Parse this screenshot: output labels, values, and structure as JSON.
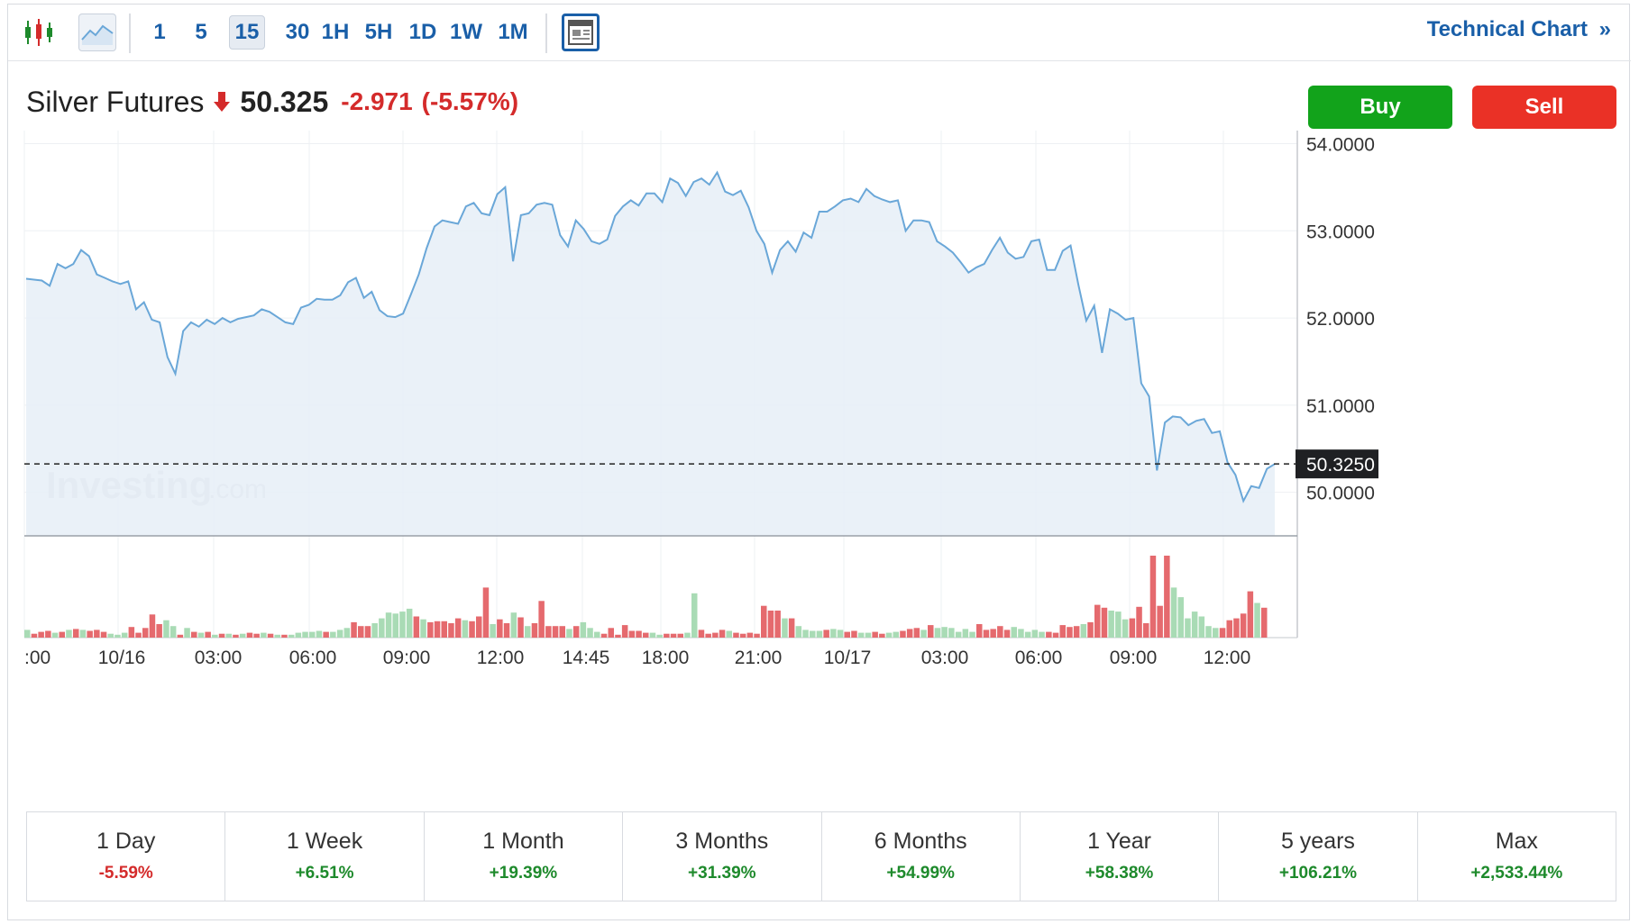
{
  "toolbar": {
    "intervals": [
      {
        "label": "1",
        "active": false
      },
      {
        "label": "5",
        "active": false
      },
      {
        "label": "15",
        "active": true
      },
      {
        "label": "30",
        "active": false
      },
      {
        "label": "1H",
        "active": false
      },
      {
        "label": "5H",
        "active": false
      },
      {
        "label": "1D",
        "active": false
      },
      {
        "label": "1W",
        "active": false
      },
      {
        "label": "1M",
        "active": false
      }
    ],
    "technical_chart_label": "Technical Chart",
    "technical_chart_arrow": "»",
    "icons": [
      "candlestick-icon",
      "line-chart-icon",
      "widget-layout-icon"
    ]
  },
  "instrument": {
    "name": "Silver Futures",
    "price": "50.325",
    "change": "-2.971",
    "change_pct": "(-5.57%)",
    "direction_icon": "arrow-down-icon"
  },
  "actions": {
    "buy_label": "Buy",
    "sell_label": "Sell"
  },
  "colors": {
    "accent": "#1a5fa8",
    "line": "#6aa7d8",
    "area_fill": "#e6eef7",
    "up_volume": "#a9dbb5",
    "down_volume": "#e56a6e",
    "buy": "#12a31b",
    "sell": "#ea3126",
    "negative": "#d42b2b",
    "positive": "#1e8a2c"
  },
  "watermark": {
    "brand": "Investing",
    "suffix": ".com"
  },
  "chart_data": {
    "type": "area",
    "title": "Silver Futures",
    "ylim": [
      49.5,
      54.15
    ],
    "y_ticks": [
      "54.0000",
      "53.0000",
      "52.0000",
      "51.0000",
      "50.0000"
    ],
    "y_tick_values": [
      54,
      53,
      52,
      51,
      50
    ],
    "x_tick_labels": [
      ":00",
      "10/16",
      "03:00",
      "06:00",
      "09:00",
      "12:00",
      "14:45",
      "18:00",
      "21:00",
      "10/17",
      "03:00",
      "06:00",
      "09:00",
      "12:00"
    ],
    "current_price_label": "50.3250",
    "current_price": 50.325,
    "grid": true,
    "series": [
      {
        "values": [
          52.45,
          52.44,
          52.43,
          52.37,
          52.62,
          52.57,
          52.62,
          52.78,
          52.71,
          52.5,
          52.46,
          52.42,
          52.39,
          52.42,
          52.1,
          52.18,
          51.98,
          51.95,
          51.55,
          51.36,
          51.85,
          51.95,
          51.9,
          51.98,
          51.93,
          52.0,
          51.95,
          51.99,
          52.01,
          52.03,
          52.1,
          52.07,
          52.01,
          51.95,
          51.93,
          52.12,
          52.15,
          52.22,
          52.21,
          52.21,
          52.26,
          52.41,
          52.46,
          52.23,
          52.3,
          52.09,
          52.02,
          52.01,
          52.05,
          52.27,
          52.5,
          52.8,
          53.05,
          53.12,
          53.1,
          53.08,
          53.28,
          53.32,
          53.2,
          53.18,
          53.42,
          53.5,
          52.65,
          53.18,
          53.2,
          53.3,
          53.32,
          53.3,
          52.95,
          52.82,
          53.12,
          53.02,
          52.88,
          52.85,
          52.9,
          53.17,
          53.28,
          53.35,
          53.29,
          53.43,
          53.43,
          53.33,
          53.6,
          53.55,
          53.4,
          53.56,
          53.6,
          53.53,
          53.67,
          53.45,
          53.41,
          53.46,
          53.27,
          53.0,
          52.85,
          52.52,
          52.78,
          52.88,
          52.76,
          52.98,
          52.92,
          53.22,
          53.22,
          53.28,
          53.35,
          53.37,
          53.33,
          53.48,
          53.4,
          53.36,
          53.33,
          53.35,
          53.0,
          53.12,
          53.12,
          53.1,
          52.88,
          52.82,
          52.75,
          52.64,
          52.52,
          52.58,
          52.62,
          52.78,
          52.92,
          52.75,
          52.68,
          52.7,
          52.88,
          52.9,
          52.55,
          52.55,
          52.77,
          52.83,
          52.38,
          51.97,
          52.14,
          51.6,
          52.1,
          52.05,
          51.98,
          52.0,
          51.25,
          51.1,
          50.25,
          50.8,
          50.87,
          50.86,
          50.77,
          50.82,
          50.84,
          50.68,
          50.7,
          50.34,
          50.2,
          49.9,
          50.07,
          50.05,
          50.27,
          50.325
        ]
      }
    ],
    "volume": [
      {
        "v": 0.08,
        "up": true
      },
      {
        "v": 0.04,
        "up": false
      },
      {
        "v": 0.06,
        "up": false
      },
      {
        "v": 0.07,
        "up": false
      },
      {
        "v": 0.05,
        "up": true
      },
      {
        "v": 0.06,
        "up": false
      },
      {
        "v": 0.08,
        "up": true
      },
      {
        "v": 0.09,
        "up": false
      },
      {
        "v": 0.08,
        "up": true
      },
      {
        "v": 0.07,
        "up": false
      },
      {
        "v": 0.08,
        "up": false
      },
      {
        "v": 0.06,
        "up": false
      },
      {
        "v": 0.04,
        "up": true
      },
      {
        "v": 0.03,
        "up": true
      },
      {
        "v": 0.05,
        "up": true
      },
      {
        "v": 0.11,
        "up": false
      },
      {
        "v": 0.05,
        "up": false
      },
      {
        "v": 0.1,
        "up": false
      },
      {
        "v": 0.24,
        "up": false
      },
      {
        "v": 0.14,
        "up": false
      },
      {
        "v": 0.18,
        "up": true
      },
      {
        "v": 0.12,
        "up": true
      },
      {
        "v": 0.03,
        "up": false
      },
      {
        "v": 0.1,
        "up": true
      },
      {
        "v": 0.06,
        "up": false
      },
      {
        "v": 0.05,
        "up": true
      },
      {
        "v": 0.06,
        "up": false
      },
      {
        "v": 0.03,
        "up": true
      },
      {
        "v": 0.04,
        "up": false
      },
      {
        "v": 0.04,
        "up": true
      },
      {
        "v": 0.03,
        "up": false
      },
      {
        "v": 0.04,
        "up": true
      },
      {
        "v": 0.05,
        "up": false
      },
      {
        "v": 0.04,
        "up": false
      },
      {
        "v": 0.05,
        "up": true
      },
      {
        "v": 0.04,
        "up": false
      },
      {
        "v": 0.03,
        "up": true
      },
      {
        "v": 0.03,
        "up": false
      },
      {
        "v": 0.03,
        "up": true
      },
      {
        "v": 0.05,
        "up": true
      },
      {
        "v": 0.06,
        "up": true
      },
      {
        "v": 0.06,
        "up": true
      },
      {
        "v": 0.07,
        "up": true
      },
      {
        "v": 0.06,
        "up": false
      },
      {
        "v": 0.06,
        "up": true
      },
      {
        "v": 0.08,
        "up": true
      },
      {
        "v": 0.1,
        "up": true
      },
      {
        "v": 0.16,
        "up": false
      },
      {
        "v": 0.12,
        "up": false
      },
      {
        "v": 0.12,
        "up": false
      },
      {
        "v": 0.15,
        "up": true
      },
      {
        "v": 0.2,
        "up": true
      },
      {
        "v": 0.26,
        "up": true
      },
      {
        "v": 0.25,
        "up": true
      },
      {
        "v": 0.27,
        "up": true
      },
      {
        "v": 0.3,
        "up": true
      },
      {
        "v": 0.22,
        "up": false
      },
      {
        "v": 0.19,
        "up": true
      },
      {
        "v": 0.16,
        "up": false
      },
      {
        "v": 0.17,
        "up": false
      },
      {
        "v": 0.17,
        "up": false
      },
      {
        "v": 0.15,
        "up": false
      },
      {
        "v": 0.2,
        "up": false
      },
      {
        "v": 0.18,
        "up": true
      },
      {
        "v": 0.17,
        "up": false
      },
      {
        "v": 0.22,
        "up": false
      },
      {
        "v": 0.52,
        "up": false
      },
      {
        "v": 0.14,
        "up": true
      },
      {
        "v": 0.19,
        "up": false
      },
      {
        "v": 0.15,
        "up": false
      },
      {
        "v": 0.26,
        "up": true
      },
      {
        "v": 0.21,
        "up": false
      },
      {
        "v": 0.12,
        "up": true
      },
      {
        "v": 0.15,
        "up": false
      },
      {
        "v": 0.38,
        "up": false
      },
      {
        "v": 0.12,
        "up": false
      },
      {
        "v": 0.12,
        "up": false
      },
      {
        "v": 0.12,
        "up": false
      },
      {
        "v": 0.09,
        "up": true
      },
      {
        "v": 0.12,
        "up": false
      },
      {
        "v": 0.16,
        "up": true
      },
      {
        "v": 0.1,
        "up": true
      },
      {
        "v": 0.06,
        "up": true
      },
      {
        "v": 0.04,
        "up": false
      },
      {
        "v": 0.1,
        "up": false
      },
      {
        "v": 0.03,
        "up": false
      },
      {
        "v": 0.13,
        "up": false
      },
      {
        "v": 0.07,
        "up": false
      },
      {
        "v": 0.07,
        "up": false
      },
      {
        "v": 0.05,
        "up": false
      },
      {
        "v": 0.05,
        "up": true
      },
      {
        "v": 0.03,
        "up": true
      },
      {
        "v": 0.04,
        "up": false
      },
      {
        "v": 0.04,
        "up": false
      },
      {
        "v": 0.04,
        "up": false
      },
      {
        "v": 0.05,
        "up": true
      },
      {
        "v": 0.46,
        "up": true
      },
      {
        "v": 0.08,
        "up": false
      },
      {
        "v": 0.04,
        "up": false
      },
      {
        "v": 0.05,
        "up": false
      },
      {
        "v": 0.08,
        "up": false
      },
      {
        "v": 0.07,
        "up": true
      },
      {
        "v": 0.05,
        "up": false
      },
      {
        "v": 0.04,
        "up": false
      },
      {
        "v": 0.05,
        "up": false
      },
      {
        "v": 0.04,
        "up": false
      },
      {
        "v": 0.33,
        "up": false
      },
      {
        "v": 0.28,
        "up": false
      },
      {
        "v": 0.28,
        "up": false
      },
      {
        "v": 0.2,
        "up": true
      },
      {
        "v": 0.2,
        "up": false
      },
      {
        "v": 0.12,
        "up": true
      },
      {
        "v": 0.08,
        "up": true
      },
      {
        "v": 0.07,
        "up": true
      },
      {
        "v": 0.07,
        "up": true
      },
      {
        "v": 0.08,
        "up": false
      },
      {
        "v": 0.09,
        "up": true
      },
      {
        "v": 0.08,
        "up": true
      },
      {
        "v": 0.06,
        "up": false
      },
      {
        "v": 0.07,
        "up": false
      },
      {
        "v": 0.05,
        "up": true
      },
      {
        "v": 0.05,
        "up": true
      },
      {
        "v": 0.06,
        "up": false
      },
      {
        "v": 0.04,
        "up": false
      },
      {
        "v": 0.05,
        "up": true
      },
      {
        "v": 0.06,
        "up": true
      },
      {
        "v": 0.07,
        "up": false
      },
      {
        "v": 0.09,
        "up": false
      },
      {
        "v": 0.1,
        "up": false
      },
      {
        "v": 0.08,
        "up": true
      },
      {
        "v": 0.13,
        "up": false
      },
      {
        "v": 0.1,
        "up": true
      },
      {
        "v": 0.11,
        "up": true
      },
      {
        "v": 0.1,
        "up": true
      },
      {
        "v": 0.06,
        "up": true
      },
      {
        "v": 0.09,
        "up": true
      },
      {
        "v": 0.06,
        "up": true
      },
      {
        "v": 0.14,
        "up": false
      },
      {
        "v": 0.08,
        "up": false
      },
      {
        "v": 0.09,
        "up": false
      },
      {
        "v": 0.12,
        "up": false
      },
      {
        "v": 0.08,
        "up": false
      },
      {
        "v": 0.11,
        "up": true
      },
      {
        "v": 0.09,
        "up": true
      },
      {
        "v": 0.06,
        "up": true
      },
      {
        "v": 0.08,
        "up": true
      },
      {
        "v": 0.06,
        "up": true
      },
      {
        "v": 0.06,
        "up": false
      },
      {
        "v": 0.05,
        "up": false
      },
      {
        "v": 0.13,
        "up": false
      },
      {
        "v": 0.11,
        "up": false
      },
      {
        "v": 0.12,
        "up": false
      },
      {
        "v": 0.14,
        "up": true
      },
      {
        "v": 0.16,
        "up": false
      },
      {
        "v": 0.34,
        "up": false
      },
      {
        "v": 0.31,
        "up": false
      },
      {
        "v": 0.28,
        "up": true
      },
      {
        "v": 0.27,
        "up": true
      },
      {
        "v": 0.19,
        "up": true
      },
      {
        "v": 0.2,
        "up": false
      },
      {
        "v": 0.32,
        "up": false
      },
      {
        "v": 0.15,
        "up": false
      },
      {
        "v": 0.85,
        "up": false
      },
      {
        "v": 0.33,
        "up": false
      },
      {
        "v": 0.85,
        "up": false
      },
      {
        "v": 0.52,
        "up": true
      },
      {
        "v": 0.42,
        "up": true
      },
      {
        "v": 0.2,
        "up": true
      },
      {
        "v": 0.27,
        "up": true
      },
      {
        "v": 0.22,
        "up": true
      },
      {
        "v": 0.12,
        "up": true
      },
      {
        "v": 0.1,
        "up": true
      },
      {
        "v": 0.1,
        "up": false
      },
      {
        "v": 0.18,
        "up": false
      },
      {
        "v": 0.2,
        "up": false
      },
      {
        "v": 0.25,
        "up": false
      },
      {
        "v": 0.48,
        "up": false
      },
      {
        "v": 0.36,
        "up": true
      },
      {
        "v": 0.31,
        "up": false
      }
    ]
  },
  "performance": [
    {
      "label": "1 Day",
      "value": "-5.59%",
      "positive": false
    },
    {
      "label": "1 Week",
      "value": "+6.51%",
      "positive": true
    },
    {
      "label": "1 Month",
      "value": "+19.39%",
      "positive": true
    },
    {
      "label": "3 Months",
      "value": "+31.39%",
      "positive": true
    },
    {
      "label": "6 Months",
      "value": "+54.99%",
      "positive": true
    },
    {
      "label": "1 Year",
      "value": "+58.38%",
      "positive": true
    },
    {
      "label": "5 years",
      "value": "+106.21%",
      "positive": true
    },
    {
      "label": "Max",
      "value": "+2,533.44%",
      "positive": true
    }
  ]
}
